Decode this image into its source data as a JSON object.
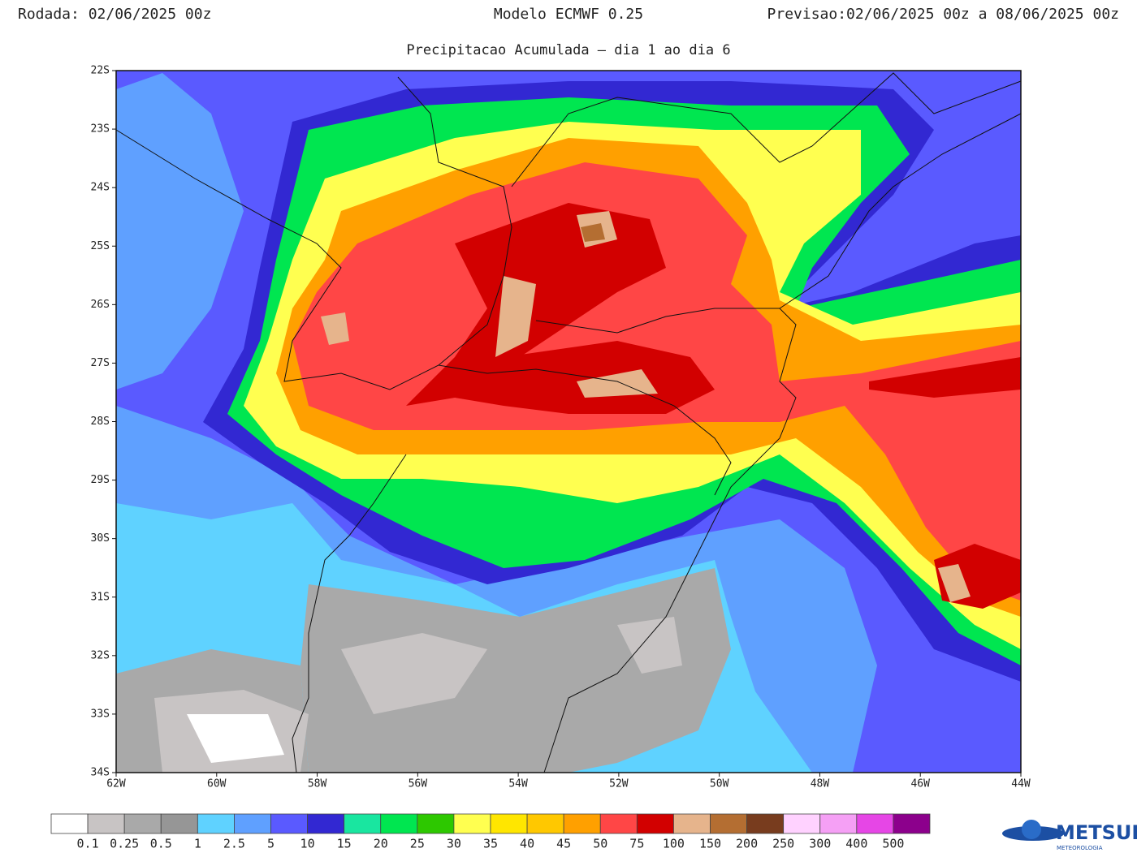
{
  "header": {
    "run": "Rodada: 02/06/2025 00z",
    "model": "Modelo ECMWF 0.25",
    "forecast": "Previsao:02/06/2025 00z a 08/06/2025 00z",
    "subtitle": "Precipitacao Acumulada – dia 1 ao dia 6"
  },
  "map": {
    "lat_labels": [
      "22S",
      "23S",
      "24S",
      "25S",
      "26S",
      "27S",
      "28S",
      "29S",
      "30S",
      "31S",
      "32S",
      "33S",
      "34S"
    ],
    "lon_labels": [
      "62W",
      "60W",
      "58W",
      "56W",
      "54W",
      "52W",
      "50W",
      "48W",
      "46W",
      "44W"
    ]
  },
  "colorbar": {
    "colors": [
      "#ffffff",
      "#c8c4c4",
      "#a9a9a9",
      "#969696",
      "#5fd2ff",
      "#5fa0ff",
      "#5a5aff",
      "#3228d2",
      "#19e6a0",
      "#00e650",
      "#2dc800",
      "#ffff50",
      "#ffe600",
      "#ffc800",
      "#ffa000",
      "#ff4646",
      "#d20000",
      "#e6b48c",
      "#b46e32",
      "#783c1e",
      "#ffd2ff",
      "#f5a0f5",
      "#e646e6",
      "#8c008c"
    ],
    "labels": [
      0.1,
      0.25,
      0.5,
      1,
      2.5,
      5,
      10,
      15,
      20,
      25,
      30,
      35,
      40,
      45,
      50,
      75,
      100,
      150,
      200,
      250,
      300,
      400,
      500
    ]
  },
  "logo": {
    "name": "METSUL",
    "tagline": "METEOROLOGIA"
  }
}
